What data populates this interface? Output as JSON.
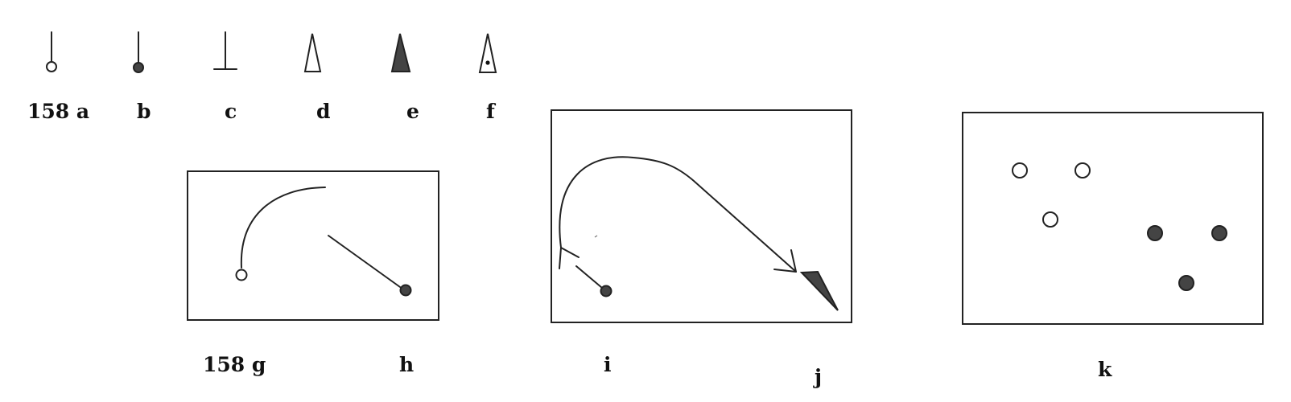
{
  "labels": {
    "a": "158 a",
    "b": "b",
    "c": "c",
    "d": "d",
    "e": "e",
    "f": "f",
    "g": "158 g",
    "h": "h",
    "i": "i",
    "j": "j",
    "k": "k"
  },
  "colors": {
    "ink": "#222222",
    "fill_dark": "#444444",
    "paper": "#ffffff"
  }
}
